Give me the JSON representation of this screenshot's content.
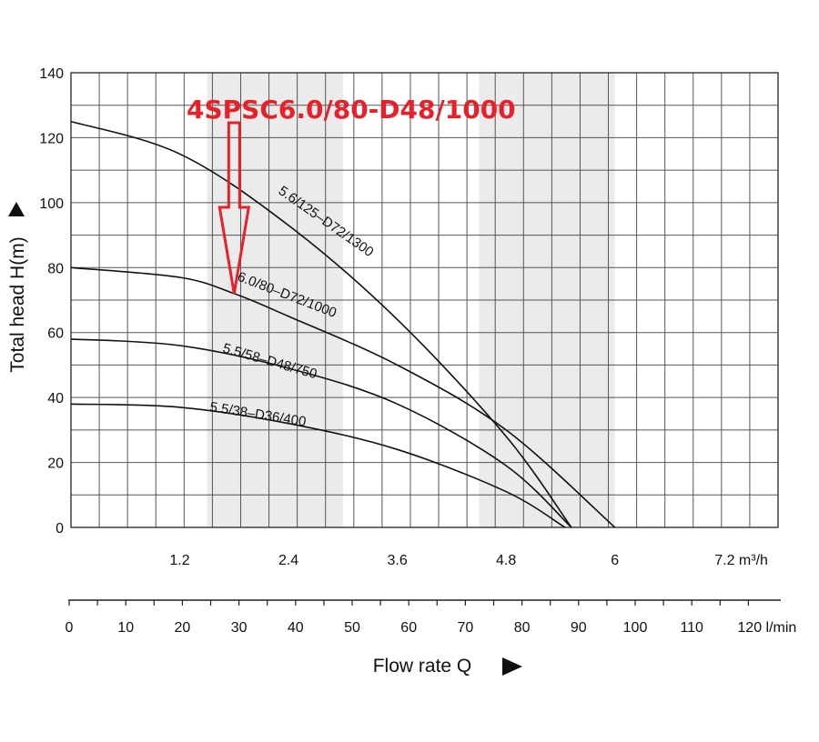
{
  "chart_data": {
    "type": "line",
    "title": "",
    "ylabel": "Total head H(m)",
    "xlabel": "Flow rate Q",
    "ylim": [
      0,
      140
    ],
    "xlim_m3h": [
      0,
      7.8
    ],
    "yticks": [
      "0",
      "20",
      "40",
      "60",
      "80",
      "100",
      "120",
      "140"
    ],
    "xticks_m3h": [
      "1.2",
      "2.4",
      "3.6",
      "4.8",
      "6",
      "7.2 m³/h"
    ],
    "xticks_m3h_values": [
      1.2,
      2.4,
      3.6,
      4.8,
      6,
      7.2
    ],
    "xticks_lmin": [
      "0",
      "10",
      "20",
      "30",
      "40",
      "50",
      "60",
      "70",
      "80",
      "90",
      "100",
      "110",
      "120 l/min"
    ],
    "grid": true,
    "shaded_bands_m3h": [
      [
        1.5,
        3.0
      ],
      [
        4.5,
        6.0
      ]
    ],
    "series": [
      {
        "name": "5.6/125–D72/1300",
        "x": [
          0,
          1.2,
          2.4,
          3.6,
          4.8,
          5.52
        ],
        "y": [
          125,
          115,
          93,
          64,
          28,
          0
        ]
      },
      {
        "name": "6.0/80–D72/1000",
        "x": [
          0,
          1.2,
          1.8,
          2.4,
          3.6,
          4.8,
          6.0
        ],
        "y": [
          80,
          77,
          72,
          65,
          50,
          30,
          0
        ]
      },
      {
        "name": "5.5/58–D48/750",
        "x": [
          0,
          1.2,
          2.4,
          3.6,
          4.8,
          5.52
        ],
        "y": [
          58,
          56,
          49,
          38,
          19,
          0
        ]
      },
      {
        "name": "5.5/38–D36/400",
        "x": [
          0,
          1.2,
          2.4,
          3.6,
          4.8,
          5.45
        ],
        "y": [
          38,
          37,
          32,
          24,
          11,
          0
        ]
      }
    ],
    "annotation": {
      "text": "4SPSC6.0/80-D48/1000",
      "color": "#e8202a",
      "target": {
        "x": 1.8,
        "y": 72
      }
    },
    "colors": {
      "curve": "#111111",
      "grid": "#555555",
      "band": "#ebebeb",
      "annotation": "#e8202a"
    }
  }
}
